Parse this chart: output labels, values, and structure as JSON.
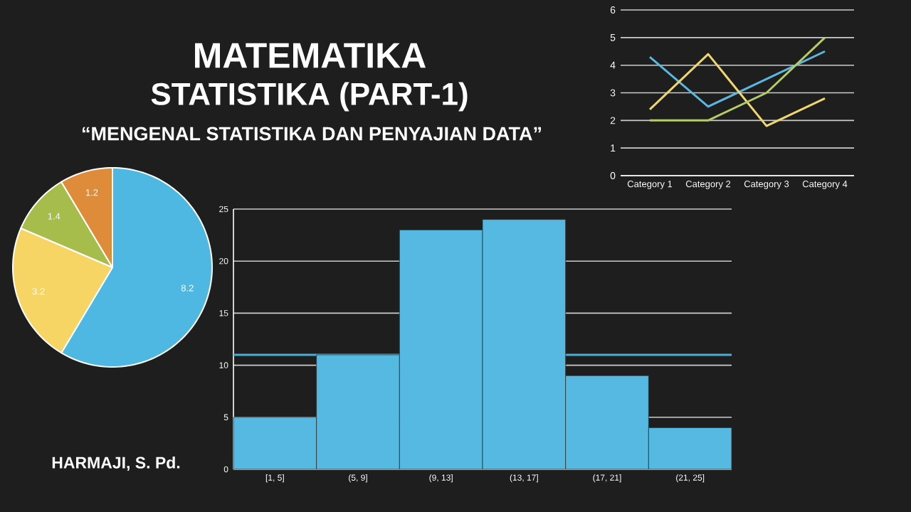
{
  "chart_data": [
    {
      "type": "other",
      "title": "MATEMATIKA",
      "subtitle": "STATISTIKA (PART-1)",
      "annotations": [
        "“MENGENAL STATISTIKA DAN PENYAJIAN DATA”",
        "HARMAJI, S. Pd."
      ]
    },
    {
      "type": "line",
      "categories": [
        "Category 1",
        "Category 2",
        "Category 3",
        "Category 4"
      ],
      "ylim": [
        0,
        6
      ],
      "yticks": [
        0,
        1,
        2,
        3,
        4,
        5,
        6
      ],
      "grid": "y",
      "series": [
        {
          "color": "#5ab8e0",
          "values": [
            4.3,
            2.5,
            3.5,
            4.5
          ]
        },
        {
          "color": "#f0d66e",
          "values": [
            2.4,
            4.4,
            1.8,
            2.8
          ]
        },
        {
          "color": "#b4cc68",
          "values": [
            2.0,
            2.0,
            3.0,
            5.0
          ]
        }
      ]
    },
    {
      "type": "pie",
      "categories": [
        null,
        null,
        null,
        null
      ],
      "values": [
        8.2,
        3.2,
        1.4,
        1.2
      ],
      "colors": [
        "#4fb8e2",
        "#f6d565",
        "#a6bd4c",
        "#de8c3a"
      ],
      "data_labels": true
    },
    {
      "type": "bar",
      "categories": [
        "[1, 5]",
        "(5, 9]",
        "(9, 13]",
        "(13, 17]",
        "(17, 21]",
        "(21, 25]"
      ],
      "values": [
        5,
        11,
        23,
        24,
        9,
        4
      ],
      "color": "#55b9e2",
      "ylim": [
        0,
        25
      ],
      "yticks": [
        0,
        5,
        10,
        15,
        20,
        25
      ],
      "grid": "y",
      "ref_lines": [
        {
          "axis": "y",
          "value": 11,
          "color": "#4aaed6"
        }
      ]
    }
  ]
}
